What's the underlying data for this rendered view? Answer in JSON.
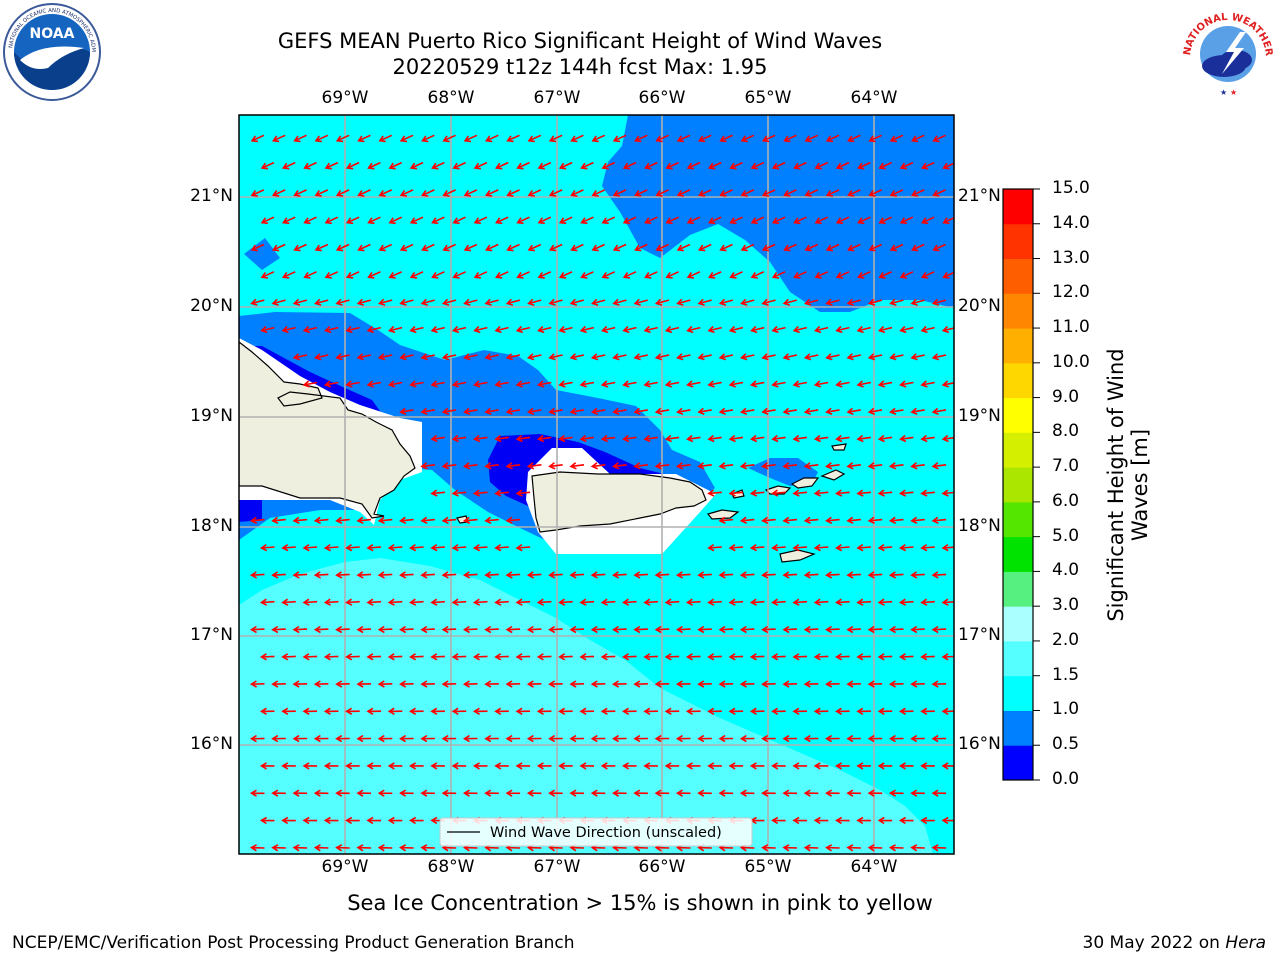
{
  "header": {
    "title_line1": "GEFS MEAN Puerto Rico Significant Height of Wind Waves",
    "title_line2": "20220529 t12z 144h fcst   Max: 1.95"
  },
  "logos": {
    "noaa": {
      "text": "NOAA",
      "ring_text": "NATIONAL OCEANIC AND ATMOSPHERIC ADMINISTRATION · U.S. DEPARTMENT OF COMMERCE"
    },
    "nws": {
      "ring_text": "NATIONAL WEATHER SERVICE"
    }
  },
  "map": {
    "lon_labels": [
      "69°W",
      "68°W",
      "67°W",
      "66°W",
      "65°W",
      "64°W"
    ],
    "lat_labels": [
      "21°N",
      "20°N",
      "19°N",
      "18°N",
      "17°N",
      "16°N"
    ],
    "legend_label": "Wind Wave Direction (unscaled)",
    "field_colors": {
      "0.0-0.5": "#0000f5",
      "0.5-1.0": "#0080ff",
      "1.0-1.5": "#00ffff",
      "1.5-2.0": "#55ffff",
      "land": "#efefdf",
      "arrow": "#ff0000"
    }
  },
  "colorbar": {
    "label": "Significant Height of Wind Waves [m]",
    "label_line1": "Significant Height of Wind",
    "label_line2": "Waves [m]",
    "ticks": [
      "15.0",
      "14.0",
      "13.0",
      "12.0",
      "11.0",
      "10.0",
      "9.0",
      "8.0",
      "7.0",
      "6.0",
      "5.0",
      "4.0",
      "3.0",
      "2.0",
      "1.5",
      "1.0",
      "0.5",
      "0.0"
    ],
    "colors_bottom_to_top": [
      "#0000ff",
      "#0080ff",
      "#00ffff",
      "#55ffff",
      "#aaffff",
      "#55f07f",
      "#00e200",
      "#55e600",
      "#aae600",
      "#d4f000",
      "#ffff00",
      "#ffd700",
      "#ffaf00",
      "#ff8600",
      "#ff5e00",
      "#ff3300",
      "#ff0000"
    ]
  },
  "captions": {
    "sea_ice": "Sea Ice Concentration > 15% is shown in pink to yellow",
    "footer_left": "NCEP/EMC/Verification Post Processing Product Generation Branch",
    "footer_date": "30 May 2022 on ",
    "footer_system": "Hera"
  }
}
